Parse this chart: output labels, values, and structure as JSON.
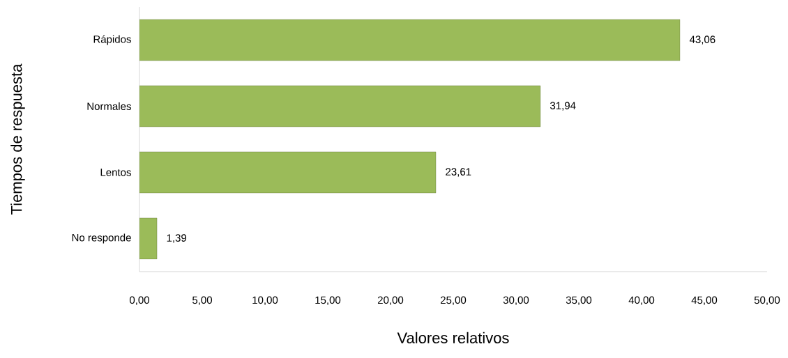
{
  "chart_data": {
    "type": "bar",
    "orientation": "horizontal",
    "xlabel": "Valores relativos",
    "ylabel": "Tiempos de respuesta",
    "categories": [
      "Rápidos",
      "Normales",
      "Lentos",
      "No responde"
    ],
    "values": [
      43.06,
      31.94,
      23.61,
      1.39
    ],
    "value_labels": [
      "43,06",
      "31,94",
      "23,61",
      "1,39"
    ],
    "color": "#9bbb59",
    "xlim": [
      0,
      50
    ],
    "xticks": [
      {
        "value": 0,
        "label": "0,00"
      },
      {
        "value": 5,
        "label": "5,00"
      },
      {
        "value": 10,
        "label": "10,00"
      },
      {
        "value": 15,
        "label": "15,00"
      },
      {
        "value": 20,
        "label": "20,00"
      },
      {
        "value": 25,
        "label": "25,00"
      },
      {
        "value": 30,
        "label": "30,00"
      },
      {
        "value": 35,
        "label": "35,00"
      },
      {
        "value": 40,
        "label": "40,00"
      },
      {
        "value": 45,
        "label": "45,00"
      },
      {
        "value": 50,
        "label": "50,00"
      }
    ],
    "grid": false
  }
}
